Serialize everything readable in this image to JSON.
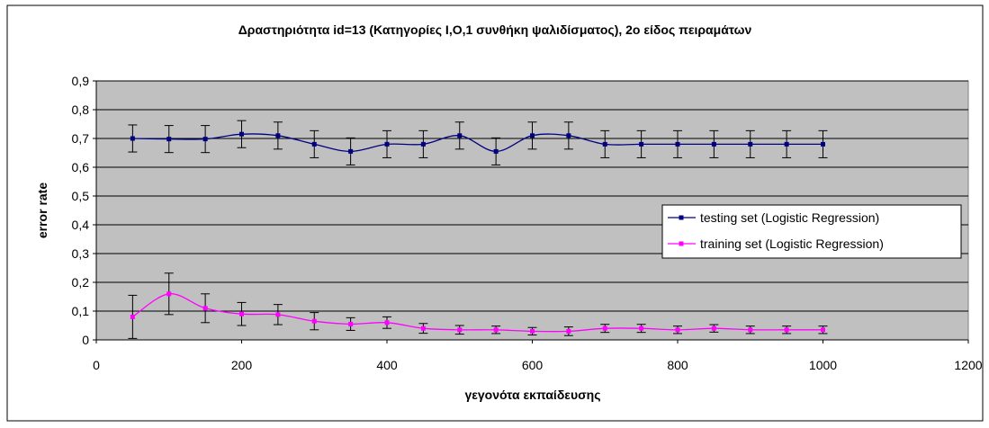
{
  "chart_data": {
    "type": "line",
    "title": "Δραστηριότητα id=13 (Κατηγορίες I,O,1 συνθήκη ψαλιδίσματος), 2ο είδος πειραμάτων",
    "xlabel": "γεγονότα εκπαίδευσης",
    "ylabel": "error rate",
    "xlim": [
      0,
      1200
    ],
    "ylim": [
      0,
      0.9
    ],
    "x_ticks": [
      0,
      200,
      400,
      600,
      800,
      1000,
      1200
    ],
    "x_tick_labels": [
      "0",
      "200",
      "400",
      "600",
      "800",
      "1000",
      "1200"
    ],
    "y_ticks": [
      0,
      0.1,
      0.2,
      0.3,
      0.4,
      0.5,
      0.6,
      0.7,
      0.8,
      0.9
    ],
    "y_tick_labels": [
      "0",
      "0,1",
      "0,2",
      "0,3",
      "0,4",
      "0,5",
      "0,6",
      "0,7",
      "0,8",
      "0,9"
    ],
    "grid": "horizontal",
    "plot_background": "#c0c0c0",
    "legend_position": "right",
    "x": [
      50,
      100,
      150,
      200,
      250,
      300,
      350,
      400,
      450,
      500,
      550,
      600,
      650,
      700,
      750,
      800,
      850,
      900,
      950,
      1000
    ],
    "series": [
      {
        "name": "testing set (Logistic Regression)",
        "color": "#000080",
        "marker": "square",
        "values": [
          0.7,
          0.698,
          0.698,
          0.715,
          0.71,
          0.68,
          0.655,
          0.68,
          0.68,
          0.71,
          0.655,
          0.71,
          0.71,
          0.68,
          0.68,
          0.68,
          0.68,
          0.68,
          0.68,
          0.68
        ],
        "errors": [
          0.047,
          0.047,
          0.047,
          0.047,
          0.047,
          0.047,
          0.047,
          0.047,
          0.047,
          0.047,
          0.047,
          0.047,
          0.047,
          0.047,
          0.047,
          0.047,
          0.047,
          0.047,
          0.047,
          0.047
        ]
      },
      {
        "name": "training set (Logistic Regression)",
        "color": "#ff00ff",
        "marker": "square",
        "values": [
          0.08,
          0.16,
          0.11,
          0.09,
          0.088,
          0.065,
          0.055,
          0.06,
          0.04,
          0.035,
          0.035,
          0.03,
          0.03,
          0.04,
          0.04,
          0.035,
          0.04,
          0.035,
          0.035,
          0.035
        ],
        "errors": [
          0.075,
          0.072,
          0.05,
          0.04,
          0.035,
          0.03,
          0.022,
          0.02,
          0.017,
          0.015,
          0.013,
          0.013,
          0.015,
          0.014,
          0.014,
          0.013,
          0.013,
          0.013,
          0.013,
          0.013
        ]
      }
    ]
  }
}
